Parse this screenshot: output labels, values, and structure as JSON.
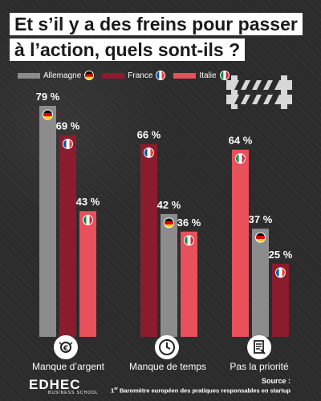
{
  "header": {
    "title_line1": "Et s’il y a des freins pour passer",
    "title_line2": "à l’action, quels sont-ils ?"
  },
  "legend": [
    {
      "label": "Allemagne",
      "color": "#8c8c8c",
      "flag": "germany-flag"
    },
    {
      "label": "France",
      "color": "#8b1c2e",
      "flag": "france-flag"
    },
    {
      "label": "Italie",
      "color": "#e8505b",
      "flag": "italy-flag"
    }
  ],
  "chart_data": {
    "type": "bar",
    "categories": [
      "Manque d’argent",
      "Manque de temps",
      "Pas la priorité"
    ],
    "series": [
      {
        "name": "Allemagne",
        "values": [
          79,
          42,
          37
        ],
        "color": "#8c8c8c"
      },
      {
        "name": "France",
        "values": [
          69,
          66,
          25
        ],
        "color": "#8b1c2e"
      },
      {
        "name": "Italie",
        "values": [
          43,
          36,
          64
        ],
        "color": "#e8505b"
      }
    ],
    "value_suffix": " %",
    "series_order": [
      [
        "Allemagne",
        "France",
        "Italie"
      ],
      [
        "France",
        "Allemagne",
        "Italie"
      ],
      [
        "Italie",
        "Allemagne",
        "France"
      ]
    ],
    "ylim": [
      0,
      79
    ]
  },
  "categories": [
    {
      "label": "Manque d’argent",
      "icon": "money-icon"
    },
    {
      "label": "Manque de temps",
      "icon": "clock-icon"
    },
    {
      "label": "Pas la priorité",
      "icon": "checklist-icon"
    }
  ],
  "footer": {
    "logo_main": "EDHEC",
    "logo_sub": "BUSINESS SCHOOL",
    "source_label": "Source :",
    "source_ordinal": "1",
    "source_sup": "er",
    "source_text": " Baromètre européen des pratiques responsables en startup"
  }
}
